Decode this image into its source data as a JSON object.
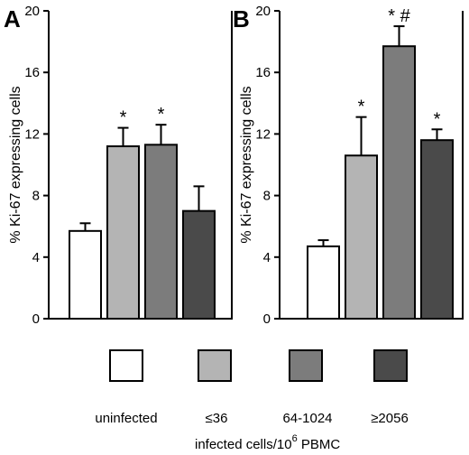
{
  "chart_data": [
    {
      "panel": "A",
      "type": "bar",
      "ylabel": "% Ki-67 expressing cells",
      "ylim": [
        0,
        20
      ],
      "yticks": [
        "0",
        "4",
        "8",
        "12",
        "16",
        "20"
      ],
      "categories": [
        "uninfected",
        "≤36",
        "64-1024",
        "≥2056"
      ],
      "values": [
        5.7,
        11.2,
        11.3,
        7.0
      ],
      "errors": [
        0.5,
        1.2,
        1.3,
        1.6
      ],
      "annotations": [
        "",
        "*",
        "*",
        ""
      ],
      "colors": [
        "#ffffff",
        "#b4b4b4",
        "#7c7c7c",
        "#4a4a4a"
      ]
    },
    {
      "panel": "B",
      "type": "bar",
      "ylabel": "% Ki-67 expressing cells",
      "ylim": [
        0,
        20
      ],
      "yticks": [
        "0",
        "4",
        "8",
        "12",
        "16",
        "20"
      ],
      "categories": [
        "uninfected",
        "≤36",
        "64-1024",
        "≥2056"
      ],
      "values": [
        4.7,
        10.6,
        17.7,
        11.6
      ],
      "errors": [
        0.4,
        2.5,
        1.3,
        0.7
      ],
      "annotations": [
        "",
        "*",
        "* #",
        "*"
      ],
      "colors": [
        "#ffffff",
        "#b4b4b4",
        "#7c7c7c",
        "#4a4a4a"
      ]
    }
  ],
  "legend": {
    "items": [
      {
        "label": "uninfected",
        "color": "#ffffff"
      },
      {
        "label": "≤36",
        "color": "#b4b4b4"
      },
      {
        "label": "64-1024",
        "color": "#7c7c7c"
      },
      {
        "label": "≥2056",
        "color": "#4a4a4a"
      }
    ],
    "title_main": "infected cells/10",
    "title_sup": "6",
    "title_tail": " PBMC"
  }
}
